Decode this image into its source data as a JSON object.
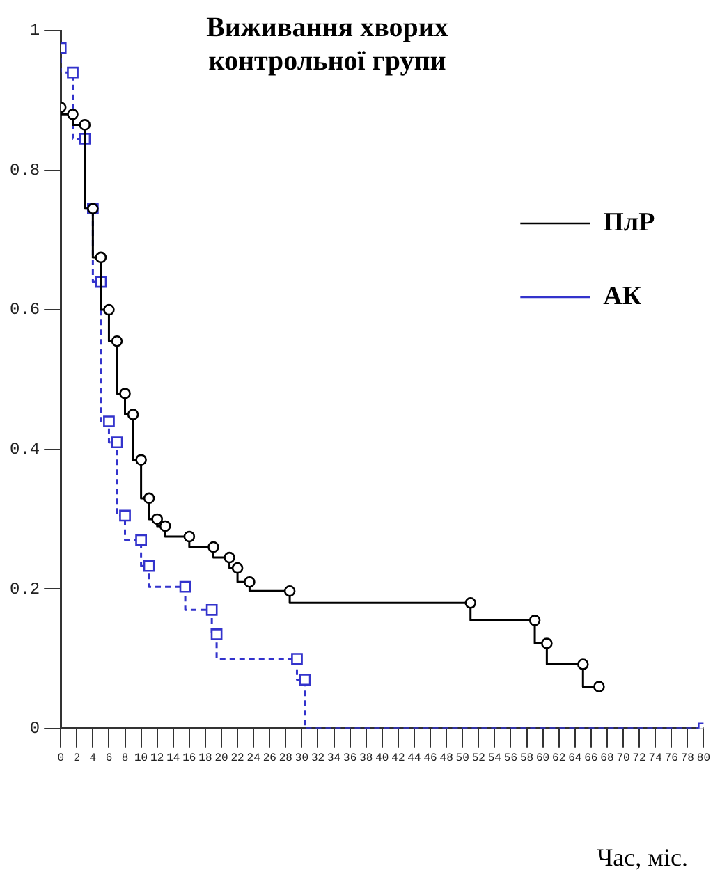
{
  "chart_data": {
    "type": "step",
    "title": "Виживання хворих контрольної групи",
    "xlabel": "Час, міс.",
    "xlim": [
      0,
      80
    ],
    "xticks": [
      0,
      2,
      4,
      6,
      8,
      10,
      12,
      14,
      16,
      18,
      20,
      22,
      24,
      26,
      28,
      30,
      32,
      34,
      36,
      38,
      40,
      42,
      44,
      46,
      48,
      50,
      52,
      54,
      56,
      58,
      60,
      62,
      64,
      66,
      68,
      70,
      72,
      74,
      76,
      78,
      80
    ],
    "ylim": [
      0,
      1
    ],
    "yticks": [
      0,
      0.2,
      0.4,
      0.6,
      0.8,
      1
    ],
    "grid": false,
    "legend": "top right",
    "series": [
      {
        "name": "ПлР",
        "color": "#000000",
        "line_style": "solid",
        "marker": "circle",
        "x": [
          0,
          1.5,
          3,
          4,
          5,
          6,
          7,
          8,
          9,
          10,
          11,
          12,
          13,
          16,
          19,
          21,
          22,
          23.5,
          28.5,
          51,
          59,
          60.5,
          65,
          67
        ],
        "values": [
          0.89,
          0.88,
          0.865,
          0.745,
          0.675,
          0.6,
          0.555,
          0.48,
          0.45,
          0.385,
          0.33,
          0.3,
          0.29,
          0.275,
          0.26,
          0.245,
          0.23,
          0.21,
          0.197,
          0.18,
          0.155,
          0.122,
          0.092,
          0.06
        ]
      },
      {
        "name": "АК",
        "color": "#3333cc",
        "line_style": "dashed",
        "marker": "square",
        "x": [
          0,
          1.5,
          3,
          4,
          5,
          6,
          7,
          8,
          10,
          11,
          15.5,
          18.8,
          19.4,
          29.4,
          30.4,
          80
        ],
        "values": [
          0.975,
          0.94,
          0.845,
          0.745,
          0.64,
          0.44,
          0.41,
          0.305,
          0.27,
          0.233,
          0.203,
          0.17,
          0.135,
          0.1,
          0.07,
          0
        ]
      }
    ]
  }
}
